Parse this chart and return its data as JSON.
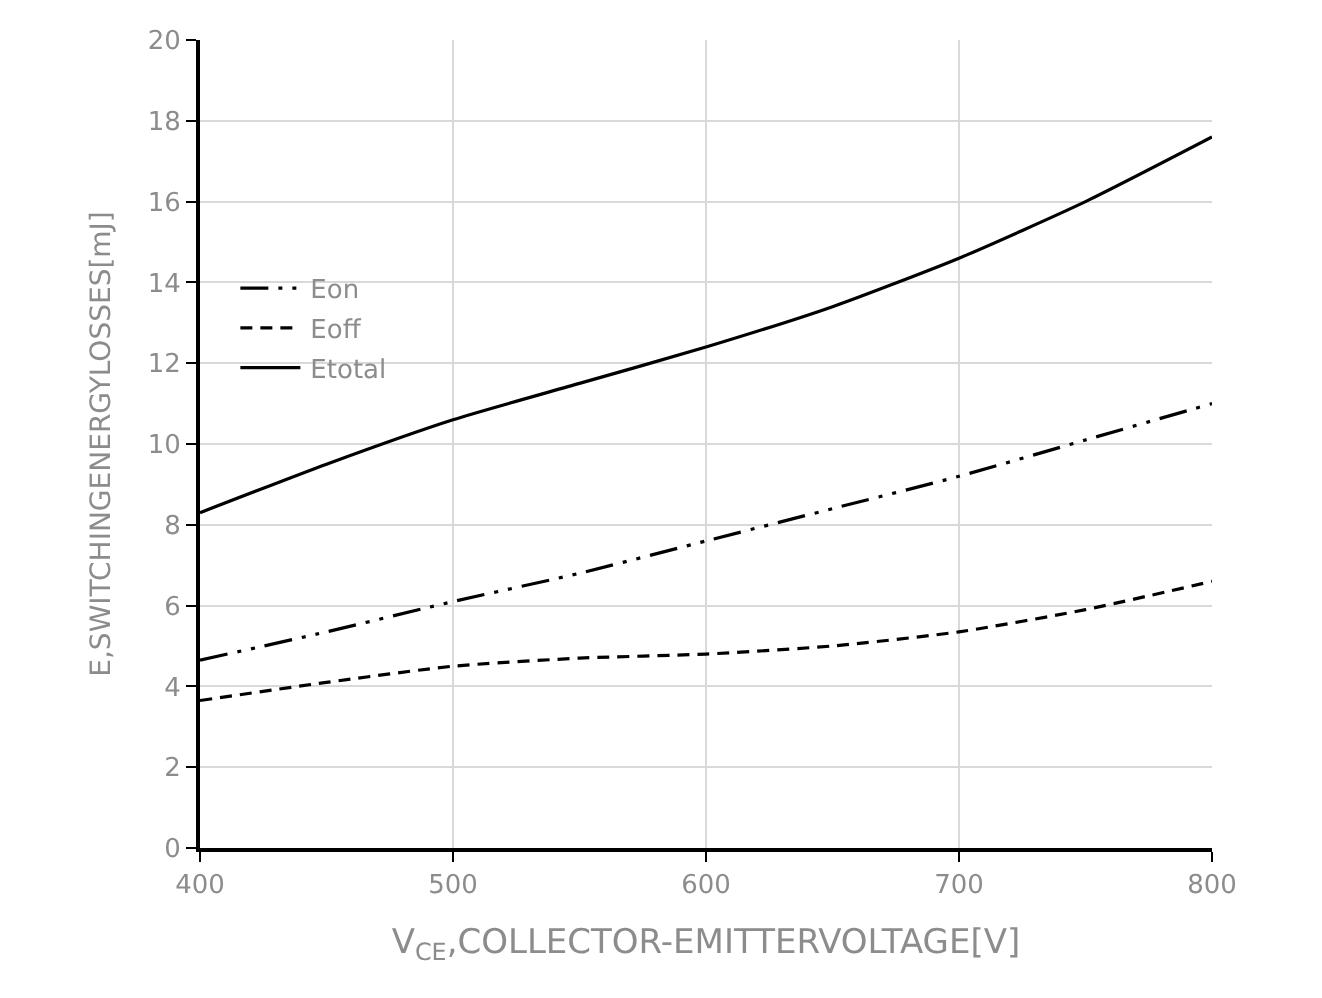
{
  "chart_data": {
    "type": "line",
    "xlabel": "V$_{CE}$,COLLECTOR-EMITTERVOLTAGE[V]",
    "ylabel": "E,SWITCHINGENERGYLOSSES[mJ]",
    "x": [
      400,
      450,
      500,
      550,
      600,
      650,
      700,
      750,
      800
    ],
    "series": [
      {
        "name": "Eon",
        "color": "#000000",
        "line_style": "dashdot",
        "values": [
          4.65,
          5.35,
          6.1,
          6.8,
          7.6,
          8.4,
          9.2,
          10.1,
          11.0
        ]
      },
      {
        "name": "Eoff",
        "color": "#000000",
        "line_style": "dashed",
        "values": [
          3.65,
          4.1,
          4.5,
          4.7,
          4.8,
          5.0,
          5.35,
          5.9,
          6.6
        ]
      },
      {
        "name": "Etotal",
        "color": "#000000",
        "line_style": "solid",
        "values": [
          8.3,
          9.5,
          10.6,
          11.5,
          12.4,
          13.4,
          14.6,
          16.0,
          17.6
        ]
      }
    ],
    "xlim": [
      400,
      800
    ],
    "xticks": [
      400,
      500,
      600,
      700,
      800
    ],
    "ylim": [
      0,
      20
    ],
    "yticks": [
      0,
      2,
      4,
      6,
      8,
      10,
      12,
      14,
      16,
      18,
      20
    ],
    "grid": true,
    "legend": "top left",
    "marker": "none"
  }
}
